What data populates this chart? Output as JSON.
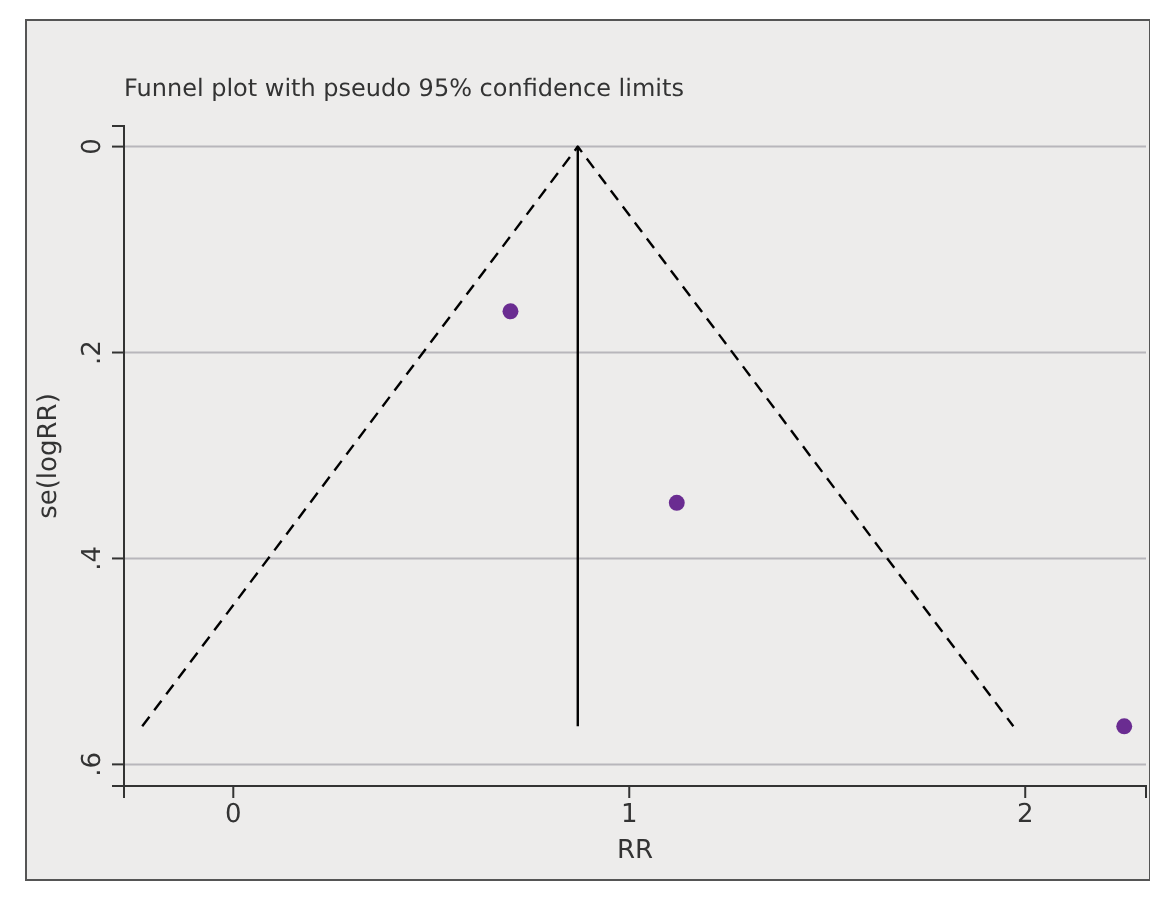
{
  "chart_data": {
    "type": "scatter",
    "title": "Funnel plot with pseudo 95% confidence limits",
    "xlabel": "RR",
    "ylabel": "se(logRR)",
    "xlim": [
      -0.276,
      2.305
    ],
    "xticks": [
      0,
      1,
      2
    ],
    "ylim": [
      0.621,
      -0.02
    ],
    "yticks": [
      {
        "value": 0,
        "label": "0"
      },
      {
        "value": 0.2,
        "label": ".2"
      },
      {
        "value": 0.4,
        "label": ".4"
      },
      {
        "value": 0.6,
        "label": ".6"
      }
    ],
    "grid": "y",
    "series": [
      {
        "type": "line",
        "color": "#000000",
        "line_style": "dashed",
        "marker": "none",
        "x": [
          -0.23,
          0.87,
          1.97
        ],
        "values": [
          0.563,
          0,
          0.563
        ]
      },
      {
        "type": "line",
        "color": "#000000",
        "line_style": "solid",
        "marker": "none",
        "x": [
          0.87,
          0.87
        ],
        "values": [
          0,
          0.563
        ]
      },
      {
        "color": "#6a2c91",
        "marker": "circle",
        "x": [
          0.7,
          1.12,
          2.25
        ],
        "values": [
          0.16,
          0.346,
          0.563
        ]
      }
    ]
  }
}
